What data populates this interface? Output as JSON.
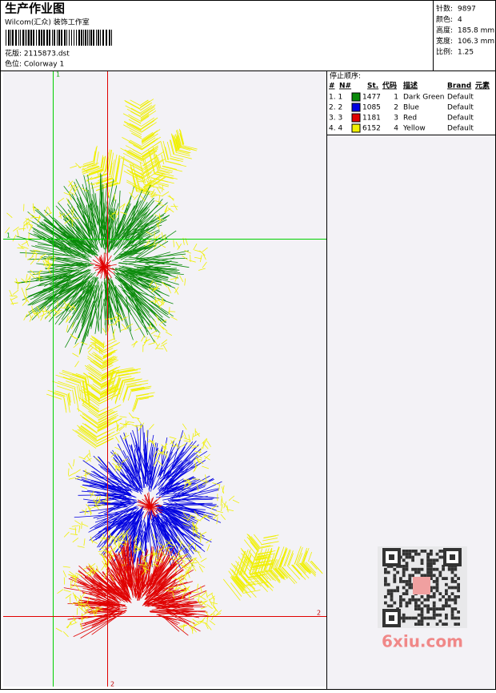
{
  "header": {
    "title": "生产作业图",
    "studio": "Wilcom(汇众) 装饰工作室",
    "design": "花版: 2115873.dst",
    "colorway": "色位: Colorway 1"
  },
  "info": [
    {
      "label": "针数:",
      "value": "9897"
    },
    {
      "label": "颜色:",
      "value": "4"
    },
    {
      "label": "高度:",
      "value": "185.8 mm"
    },
    {
      "label": "宽度:",
      "value": "106.3 mm"
    },
    {
      "label": "比例:",
      "value": "1.25"
    }
  ],
  "stop_sequence": {
    "title": "停止顺序:",
    "columns": [
      "#",
      "N#",
      "St.",
      "代码",
      "描述",
      "Brand",
      "元素"
    ],
    "rows": [
      {
        "index": "1. 1",
        "swatch": "#0a8a0a",
        "stitches": "1477",
        "code": "1",
        "description": "Dark Green",
        "brand": "Default"
      },
      {
        "index": "2. 2",
        "swatch": "#0000e0",
        "stitches": "1085",
        "code": "2",
        "description": "Blue",
        "brand": "Default"
      },
      {
        "index": "3. 3",
        "swatch": "#e00000",
        "stitches": "1181",
        "code": "3",
        "description": "Red",
        "brand": "Default"
      },
      {
        "index": "4. 4",
        "swatch": "#f0f000",
        "stitches": "6152",
        "code": "4",
        "description": "Yellow",
        "brand": "Default"
      }
    ]
  },
  "guides": {
    "top": "1",
    "left": "1",
    "right": "2",
    "bottom": "2"
  },
  "watermark": "6xiu.com"
}
